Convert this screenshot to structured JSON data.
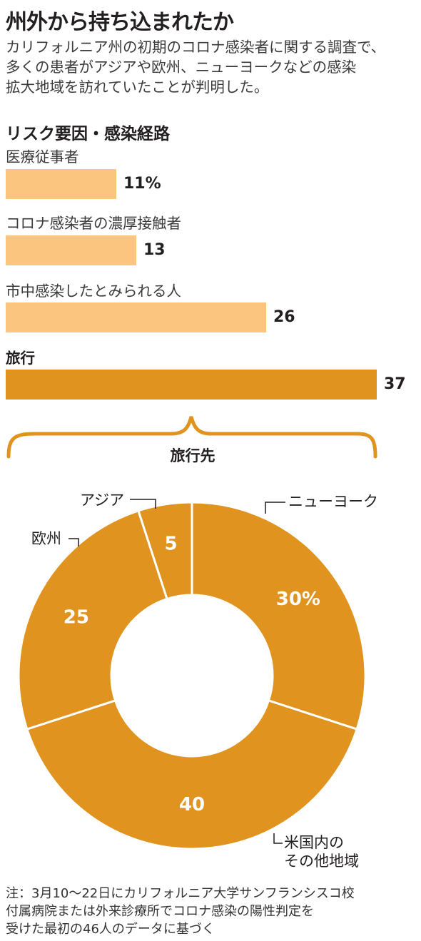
{
  "title": "州外から持ち込まれたか",
  "lead": [
    "カリフォルニア州の初期のコロナ感染者に関する調査で、",
    "多くの患者がアジアや欧州、ニューヨークなどの感染",
    "拡大地域を訪れていたことが判明した。"
  ],
  "colors": {
    "light_bar": "#fbc57f",
    "dark": "#e0941f",
    "text": "#231f20"
  },
  "chart_data": [
    {
      "type": "bar",
      "title": "リスク要因・感染経路",
      "orientation": "horizontal",
      "categories": [
        "医療従事者",
        "コロナ感染者の濃厚接触者",
        "市中感染したとみられる人",
        "旅行"
      ],
      "values": [
        11,
        13,
        26,
        37
      ],
      "value_labels": [
        "11%",
        "13",
        "26",
        "37"
      ],
      "unit": "%"
    },
    {
      "type": "pie",
      "title": "旅行先",
      "donut": true,
      "categories": [
        "ニューヨーク",
        "米国内の その他地域",
        "欧州",
        "アジア"
      ],
      "values": [
        30,
        40,
        25,
        5
      ],
      "value_labels": [
        "30%",
        "40",
        "25",
        "5"
      ],
      "category_lines": [
        [
          "ニューヨーク"
        ],
        [
          "米国内の",
          "その他地域"
        ],
        [
          "欧州"
        ],
        [
          "アジア"
        ]
      ]
    }
  ],
  "note": [
    "注：3月10～22日にカリフォルニア大学サンフランシスコ校",
    "付属病院または外来診療所でコロナ感染の陽性判定を",
    "受けた最初の46人のデータに基づく"
  ]
}
